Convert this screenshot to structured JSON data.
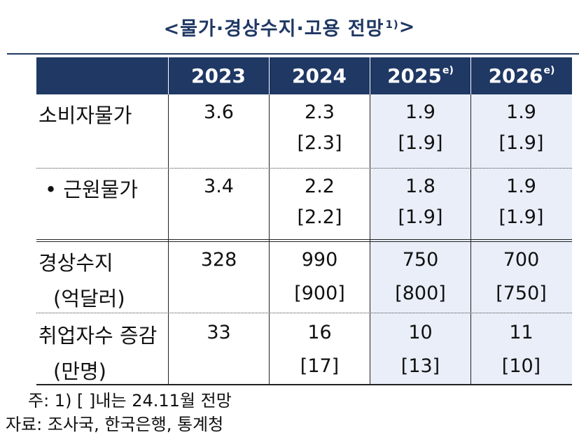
{
  "title": {
    "text": "<물가·경상수지·고용  전망",
    "sup": "1)",
    "close": ">"
  },
  "header": [
    {
      "year": "2023",
      "sup": ""
    },
    {
      "year": "2024",
      "sup": ""
    },
    {
      "year": "2025",
      "sup": "e)"
    },
    {
      "year": "2026",
      "sup": "e)"
    }
  ],
  "rows": [
    {
      "label": [
        "소비자물가",
        ""
      ],
      "values": [
        [
          "3.6",
          ""
        ],
        [
          "2.3",
          "[2.3]"
        ],
        [
          "1.9",
          "[1.9]"
        ],
        [
          "1.9",
          "[1.9]"
        ]
      ]
    },
    {
      "label": [
        "•  근원물가",
        ""
      ],
      "values": [
        [
          "3.4",
          ""
        ],
        [
          "2.2",
          "[2.2]"
        ],
        [
          "1.8",
          "[1.9]"
        ],
        [
          "1.9",
          "[1.9]"
        ]
      ]
    },
    {
      "label": [
        "경상수지",
        "(억달러)"
      ],
      "values": [
        [
          "328",
          ""
        ],
        [
          "990",
          "[900]"
        ],
        [
          "750",
          "[800]"
        ],
        [
          "700",
          "[750]"
        ]
      ]
    },
    {
      "label": [
        "취업자수 증감",
        "(만명)"
      ],
      "values": [
        [
          "33",
          ""
        ],
        [
          "16",
          "[17]"
        ],
        [
          "10",
          "[13]"
        ],
        [
          "11",
          "[10]"
        ]
      ]
    }
  ],
  "notes": {
    "note1": "주: 1) [ ]내는 24.11월  전망",
    "source": "자료: 조사국, 한국은행, 통계청"
  },
  "colors": {
    "header_bg": "#1f3864",
    "forecast_shade": "#e9eef8"
  }
}
